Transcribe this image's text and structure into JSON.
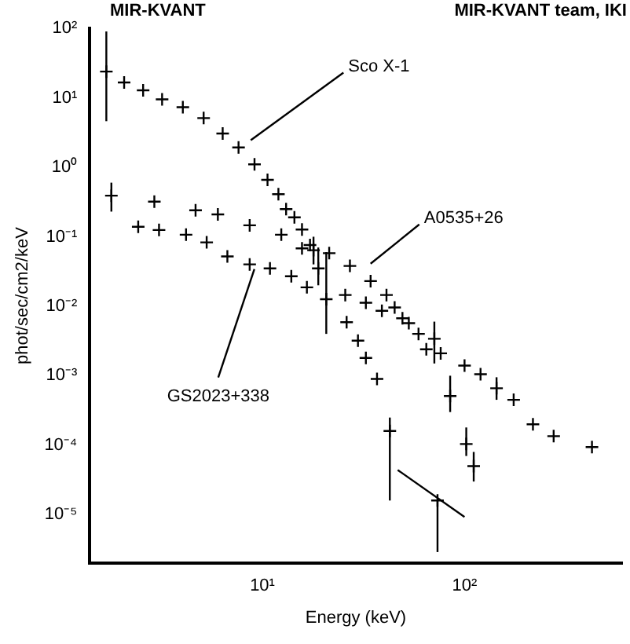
{
  "chart_data": {
    "type": "scatter",
    "title": "MIR-KVANT",
    "xlabel": "Energy (keV)",
    "ylabel": "phot/sec/cm2/keV",
    "annotations": [
      "MIR-KVANT team, IKI",
      {
        "text": "Sco X-1",
        "x": 8.3,
        "y": 2.1
      },
      {
        "text": "A0535+26",
        "x": 32.5,
        "y": 0.035
      },
      {
        "text": "GS2023+338",
        "x": 8.65,
        "y": 0.04
      }
    ],
    "log": "xy",
    "grid": false,
    "legend": false,
    "marker": "cross",
    "xlim": [
      1.4,
      600
    ],
    "xticks": [
      {
        "value": 10,
        "label": "10¹"
      },
      {
        "value": 100,
        "label": "10²"
      }
    ],
    "ylim": [
      2e-06,
      100
    ],
    "yticks": [
      {
        "value": 100,
        "label": "10²"
      },
      {
        "value": 10,
        "label": "10¹"
      },
      {
        "value": 1,
        "label": "10⁰"
      },
      {
        "value": 0.1,
        "label": "10⁻¹"
      },
      {
        "value": 0.01,
        "label": "10⁻²"
      },
      {
        "value": 0.001,
        "label": "10⁻³"
      },
      {
        "value": 0.0001,
        "label": "10⁻⁴"
      },
      {
        "value": 1e-05,
        "label": "10⁻⁵"
      }
    ],
    "series": [
      {
        "color": "#000000",
        "x": [
          1.69,
          2.07,
          2.57,
          3.19,
          4.04,
          5.12,
          6.36,
          7.62,
          9.14,
          10.6,
          12.0,
          13.1,
          14.4,
          15.7,
          17.2,
          18.9,
          20.7,
          26.1,
          29.7,
          32.5,
          36.9,
          42.7,
          73.5
        ],
        "values": [
          23.8,
          16.6,
          12.8,
          9.5,
          7.3,
          5.1,
          3.06,
          1.93,
          1.1,
          0.66,
          0.41,
          0.25,
          0.19,
          0.127,
          0.076,
          0.035,
          0.0126,
          0.0059,
          0.0032,
          0.0018,
          0.0009,
          0.00016,
          1.6e-05
        ],
        "errors": [
          [
            4.6,
            90
          ],
          null,
          null,
          null,
          null,
          null,
          null,
          null,
          null,
          null,
          null,
          null,
          null,
          null,
          null,
          [
            0.02,
            0.07
          ],
          [
            0.004,
            0.06
          ],
          null,
          null,
          null,
          null,
          [
            1.6e-05,
            0.00025
          ],
          [
            2.9e-06,
            1.6e-05
          ]
        ]
      },
      {
        "color": "#000000",
        "x": [
          1.79,
          2.92,
          4.67,
          6.02,
          8.65,
          12.4,
          15.7,
          17.9,
          21.4,
          27.1,
          34.3,
          41.1,
          45.1,
          53.0,
          64.7,
          76.2,
          100,
          120,
          144,
          175,
          218,
          276,
          427
        ],
        "values": [
          0.39,
          0.32,
          0.24,
          0.21,
          0.146,
          0.107,
          0.068,
          0.064,
          0.058,
          0.038,
          0.023,
          0.0145,
          0.0096,
          0.0057,
          0.0024,
          0.0021,
          0.0014,
          0.00105,
          0.00066,
          0.00045,
          0.0002,
          0.000135,
          9.4e-05
        ],
        "errors": [
          [
            0.23,
            0.6
          ],
          null,
          null,
          null,
          null,
          null,
          null,
          [
            0.04,
            0.1
          ],
          null,
          null,
          null,
          null,
          null,
          null,
          null,
          null,
          null,
          null,
          [
            0.00045,
            0.00095
          ],
          null,
          null,
          null,
          null
        ]
      },
      {
        "color": "#000000",
        "x": [
          2.43,
          3.08,
          4.19,
          5.3,
          6.71,
          8.65,
          10.9,
          13.9,
          16.6,
          25.7,
          32.5,
          39.0,
          49.3,
          59.2,
          70.9,
          84.9,
          102,
          111
        ],
        "values": [
          0.139,
          0.125,
          0.107,
          0.083,
          0.052,
          0.04,
          0.035,
          0.027,
          0.0187,
          0.0145,
          0.0112,
          0.0086,
          0.0067,
          0.004,
          0.0034,
          0.00051,
          0.000104,
          5e-05
        ],
        "errors": [
          null,
          null,
          null,
          null,
          null,
          null,
          null,
          null,
          null,
          null,
          null,
          null,
          null,
          null,
          [
            0.0015,
            0.006
          ],
          [
            0.0003,
            0.001
          ],
          [
            7e-05,
            0.00018
          ],
          [
            3e-05,
            8e-05
          ]
        ]
      },
      {
        "type": "line",
        "marker": "none",
        "color": "#000000",
        "x": [
          46.7,
          100
        ],
        "values": [
          4.4e-05,
          9.3e-06
        ]
      }
    ]
  }
}
